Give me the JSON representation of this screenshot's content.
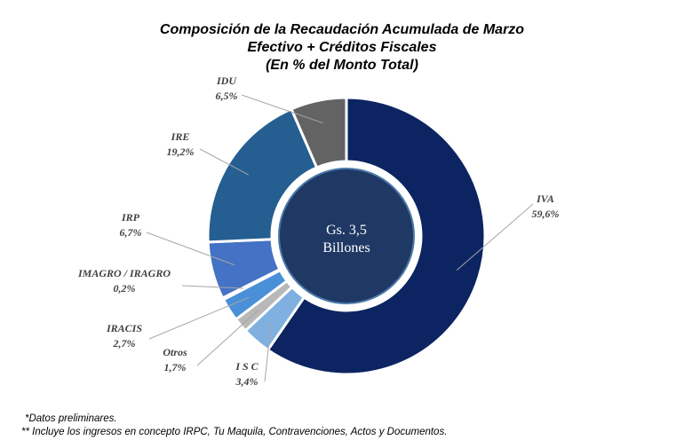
{
  "chart_data": {
    "type": "pie",
    "title": [
      "Composición de la Recaudación Acumulada de Marzo",
      "Efectivo + Créditos Fiscales",
      "(En % del Monto Total)"
    ],
    "center_label": [
      "Gs. 3,5",
      "Billones"
    ],
    "slices": [
      {
        "name": "IVA",
        "value": 59.6,
        "label": "59,6%",
        "color": "#0c2461"
      },
      {
        "name": "I S C",
        "value": 3.4,
        "label": "3,4%",
        "color": "#7fb0e0"
      },
      {
        "name": "Otros",
        "value": 1.7,
        "label": "1,7%",
        "color": "#b8b8b8"
      },
      {
        "name": "IRACIS",
        "value": 2.7,
        "label": "2,7%",
        "color": "#4a90d9"
      },
      {
        "name": "IMAGRO / IRAGRO",
        "value": 0.2,
        "label": "0,2%",
        "color": "#2e6fbf"
      },
      {
        "name": "IRP",
        "value": 6.7,
        "label": "6,7%",
        "color": "#4472c4"
      },
      {
        "name": "IRE",
        "value": 19.2,
        "label": "19,2%",
        "color": "#255e91"
      },
      {
        "name": "IDU",
        "value": 6.5,
        "label": "6,5%",
        "color": "#636363"
      }
    ]
  },
  "footnotes": {
    "line1": "*Datos preliminares.",
    "line2": "** Incluye los ingresos en concepto IRPC, Tu Maquila, Contravenciones, Actos y Documentos."
  }
}
